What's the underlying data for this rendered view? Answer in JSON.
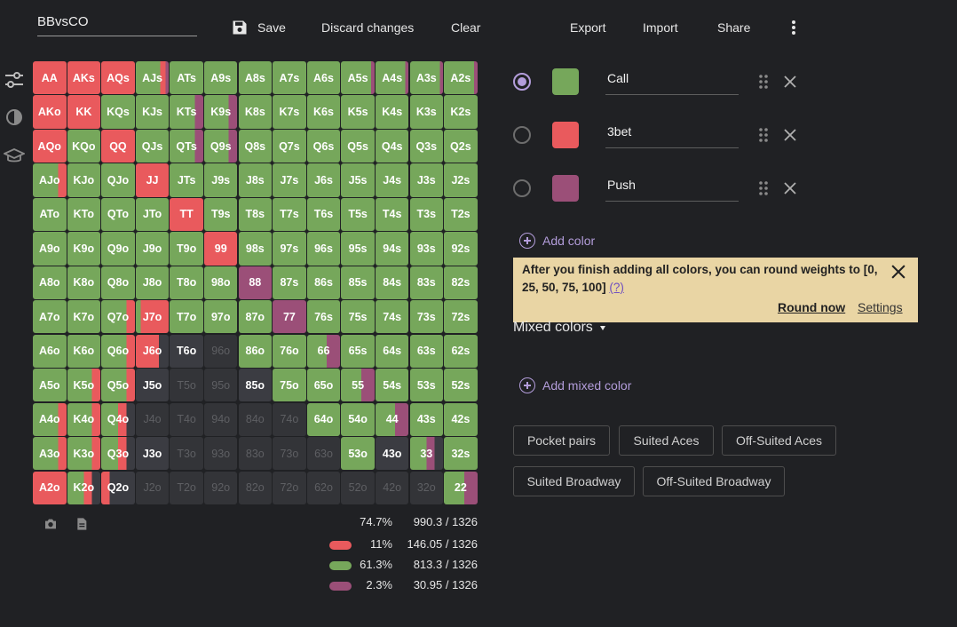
{
  "toolbar": {
    "range_name": "BBvsCO",
    "save_label": "Save",
    "discard_label": "Discard changes",
    "clear_label": "Clear",
    "export_label": "Export",
    "import_label": "Import",
    "share_label": "Share"
  },
  "colors": {
    "call": "#76a75b",
    "threebet": "#e95a5d",
    "push": "#9b4f78",
    "empty": "#333438",
    "mixed_dark": "#3b3c42"
  },
  "legend": [
    {
      "name": "Call",
      "color": "#76a75b",
      "selected": true
    },
    {
      "name": "3bet",
      "color": "#e95a5d",
      "selected": false
    },
    {
      "name": "Push",
      "color": "#9b4f78",
      "selected": false
    }
  ],
  "add_color_label": "Add color",
  "banner": {
    "text": "After you finish adding all colors, you can round weights to [0, 25, 50, 75, 100]",
    "help": "(?)",
    "round_now": "Round now",
    "settings": "Settings"
  },
  "mixed_colors_label": "Mixed colors",
  "add_mixed_color_label": "Add mixed color",
  "presets": [
    "Pocket pairs",
    "Suited Aces",
    "Off-Suited Aces",
    "Suited Broadway",
    "Off-Suited Broadway"
  ],
  "stats": {
    "total": {
      "pct": "74.7%",
      "combos": "990.3 / 1326"
    },
    "rows": [
      {
        "color": "#e95a5d",
        "pct": "11%",
        "combos": "146.05 / 1326"
      },
      {
        "color": "#76a75b",
        "pct": "61.3%",
        "combos": "813.3 / 1326"
      },
      {
        "color": "#9b4f78",
        "pct": "2.3%",
        "combos": "30.95 / 1326"
      }
    ]
  },
  "grid": [
    [
      "AA:R",
      "AKs:R",
      "AQs:R",
      "AJs:G75R15P10",
      "ATs:G",
      "A9s:G",
      "A8s:G",
      "A7s:G",
      "A6s:G",
      "A5s:G90P10",
      "A4s:G90P10",
      "A3s:G90P10",
      "A2s:G90P10"
    ],
    [
      "AKo:R",
      "KK:R",
      "KQs:G",
      "KJs:G",
      "KTs:G75P25",
      "K9s:G75P25",
      "K8s:G",
      "K7s:G",
      "K6s:G",
      "K5s:G",
      "K4s:G",
      "K3s:G",
      "K2s:G"
    ],
    [
      "AQo:R",
      "KQo:G",
      "QQ:R",
      "QJs:G",
      "QTs:G75P25",
      "Q9s:G75P25",
      "Q8s:G",
      "Q7s:G",
      "Q6s:G",
      "Q5s:G",
      "Q4s:G",
      "Q3s:G",
      "Q2s:G"
    ],
    [
      "AJo:G75R25",
      "KJo:G",
      "QJo:G",
      "JJ:R",
      "JTs:G",
      "J9s:G",
      "J8s:G",
      "J7s:G",
      "J6s:G",
      "J5s:G",
      "J4s:G",
      "J3s:G",
      "J2s:G"
    ],
    [
      "ATo:G",
      "KTo:G",
      "QTo:G",
      "JTo:G",
      "TT:R",
      "T9s:G",
      "T8s:G",
      "T7s:G",
      "T6s:G",
      "T5s:G",
      "T4s:G",
      "T3s:G",
      "T2s:G"
    ],
    [
      "A9o:G",
      "K9o:G",
      "Q9o:G",
      "J9o:G",
      "T9o:G",
      "99:R",
      "98s:G",
      "97s:G",
      "96s:G",
      "95s:G",
      "94s:G",
      "93s:G",
      "92s:G"
    ],
    [
      "A8o:G",
      "K8o:G",
      "Q8o:G",
      "J8o:G",
      "T8o:G",
      "98o:G",
      "88:P",
      "87s:G",
      "86s:G",
      "85s:G",
      "84s:G",
      "83s:G",
      "82s:G"
    ],
    [
      "A7o:G",
      "K7o:G",
      "Q7o:G75R25",
      "J7o:G15R85",
      "T7o:G",
      "97o:G",
      "87o:G",
      "77:P",
      "76s:G",
      "75s:G",
      "74s:G",
      "73s:G",
      "72s:G"
    ],
    [
      "A6o:G",
      "K6o:G",
      "Q6o:G75R25",
      "J6o:R70D30",
      "T6o:D",
      "96o:E",
      "86o:G",
      "76o:G",
      "66:G60P40",
      "65s:G",
      "64s:G",
      "63s:G",
      "62s:G"
    ],
    [
      "A5o:G",
      "K5o:G75R25",
      "Q5o:G75R25",
      "J5o:D",
      "T5o:E",
      "95o:E",
      "85o:D",
      "75o:G",
      "65o:G",
      "55:G60P40",
      "54s:G",
      "53s:G",
      "52s:G"
    ],
    [
      "A4o:G75R25",
      "K4o:G75R25",
      "Q4o:G50R25D25",
      "J4o:E",
      "T4o:E",
      "94o:E",
      "84o:E",
      "74o:E",
      "64o:G",
      "54o:G",
      "44:G60P40",
      "43s:G",
      "42s:G"
    ],
    [
      "A3o:G75R25",
      "K3o:G75R25",
      "Q3o:G50R25D25",
      "J3o:D",
      "T3o:E",
      "93o:E",
      "83o:E",
      "73o:E",
      "63o:E",
      "53o:G",
      "43o:D",
      "33:G50P25D25",
      "32s:G"
    ],
    [
      "A2o:R",
      "K2o:G50R25D25",
      "Q2o:R25D75",
      "J2o:E",
      "T2o:E",
      "92o:E",
      "82o:E",
      "72o:E",
      "62o:E",
      "52o:E",
      "42o:E",
      "32o:E",
      "22:G60P40"
    ]
  ]
}
